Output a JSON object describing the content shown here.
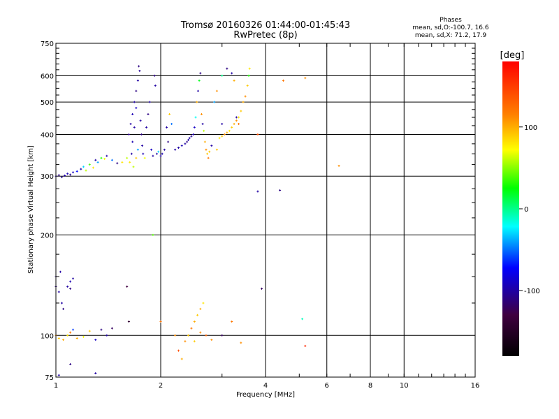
{
  "chart_data": {
    "type": "scatter",
    "title": "Tromsø 20160326 01:44:00-01:45:43",
    "subtitle": "RwPretec (8p)",
    "phases_title": "Phases",
    "phases_line1": "mean, sd,O:-100.7, 16.6",
    "phases_line2": "mean, sd,X:  71.2, 17.9",
    "xlabel": "Frequency [MHz]",
    "ylabel": "Stationary phase Virtual Height [km]",
    "x_scale": "log",
    "y_scale": "log",
    "xlim": [
      1,
      16
    ],
    "ylim": [
      75,
      750
    ],
    "x_ticks": [
      1,
      2,
      4,
      6,
      8,
      10,
      16
    ],
    "x_tick_labels": [
      "1",
      "2",
      "4",
      "6",
      "8",
      "10",
      "16"
    ],
    "y_ticks": [
      75,
      100,
      200,
      300,
      400,
      500,
      600,
      750
    ],
    "y_tick_labels": [
      "75",
      "100",
      "200",
      "300",
      "400",
      "500",
      "600",
      "750"
    ],
    "y_minor_ticks": [
      125,
      150,
      175,
      225,
      250,
      275,
      325,
      350,
      375,
      425,
      450,
      475,
      525,
      550,
      575,
      625,
      650,
      675,
      700,
      725
    ],
    "grid": true,
    "colorbar": {
      "label": "[deg]",
      "range": [
        -180,
        180
      ],
      "ticks": [
        100,
        0,
        -100
      ],
      "tick_labels": [
        "100",
        "0",
        "-100"
      ]
    },
    "points": [
      [
        1.0,
        300,
        -100
      ],
      [
        1.02,
        302,
        -110
      ],
      [
        1.04,
        298,
        -105
      ],
      [
        1.06,
        301,
        -100
      ],
      [
        1.08,
        305,
        -95
      ],
      [
        1.1,
        303,
        -105
      ],
      [
        1.12,
        308,
        -90
      ],
      [
        1.15,
        310,
        -70
      ],
      [
        1.18,
        315,
        -100
      ],
      [
        1.2,
        320,
        -30
      ],
      [
        1.22,
        312,
        60
      ],
      [
        1.25,
        325,
        40
      ],
      [
        1.28,
        318,
        80
      ],
      [
        1.3,
        335,
        -100
      ],
      [
        1.32,
        330,
        -40
      ],
      [
        1.35,
        340,
        30
      ],
      [
        1.38,
        338,
        70
      ],
      [
        1.4,
        345,
        -100
      ],
      [
        1.45,
        335,
        -50
      ],
      [
        1.5,
        328,
        -110
      ],
      [
        1.55,
        330,
        80
      ],
      [
        1.6,
        340,
        60
      ],
      [
        1.62,
        400,
        -110
      ],
      [
        1.64,
        430,
        -100
      ],
      [
        1.66,
        460,
        -95
      ],
      [
        1.68,
        500,
        -100
      ],
      [
        1.7,
        540,
        -110
      ],
      [
        1.72,
        580,
        -100
      ],
      [
        1.74,
        620,
        -105
      ],
      [
        1.73,
        640,
        -110
      ],
      [
        1.7,
        480,
        -90
      ],
      [
        1.68,
        420,
        -100
      ],
      [
        1.66,
        380,
        -95
      ],
      [
        1.65,
        350,
        -100
      ],
      [
        1.63,
        330,
        80
      ],
      [
        1.67,
        320,
        60
      ],
      [
        1.7,
        340,
        90
      ],
      [
        1.72,
        360,
        -40
      ],
      [
        1.75,
        440,
        -100
      ],
      [
        1.76,
        400,
        -110
      ],
      [
        1.77,
        370,
        -100
      ],
      [
        1.78,
        350,
        -95
      ],
      [
        1.8,
        340,
        70
      ],
      [
        1.82,
        420,
        -100
      ],
      [
        1.84,
        460,
        -110
      ],
      [
        1.86,
        500,
        -100
      ],
      [
        1.88,
        360,
        -90
      ],
      [
        1.9,
        345,
        -100
      ],
      [
        1.92,
        600,
        -110
      ],
      [
        1.93,
        560,
        -100
      ],
      [
        1.95,
        350,
        -100
      ],
      [
        1.97,
        355,
        -30
      ],
      [
        2.0,
        345,
        -100
      ],
      [
        2.02,
        350,
        -95
      ],
      [
        2.05,
        360,
        -100
      ],
      [
        2.08,
        420,
        -100
      ],
      [
        2.1,
        380,
        -110
      ],
      [
        2.12,
        460,
        90
      ],
      [
        2.15,
        430,
        -50
      ],
      [
        2.2,
        360,
        -100
      ],
      [
        2.25,
        365,
        -100
      ],
      [
        2.3,
        370,
        -95
      ],
      [
        2.35,
        375,
        -100
      ],
      [
        2.38,
        380,
        -110
      ],
      [
        2.4,
        385,
        -100
      ],
      [
        2.42,
        390,
        -100
      ],
      [
        2.45,
        395,
        -105
      ],
      [
        2.48,
        400,
        -100
      ],
      [
        2.5,
        420,
        -90
      ],
      [
        2.52,
        450,
        -20
      ],
      [
        2.54,
        500,
        100
      ],
      [
        2.56,
        540,
        -100
      ],
      [
        2.58,
        580,
        20
      ],
      [
        2.6,
        610,
        -110
      ],
      [
        2.62,
        460,
        110
      ],
      [
        2.64,
        430,
        -100
      ],
      [
        2.66,
        410,
        60
      ],
      [
        2.68,
        380,
        100
      ],
      [
        2.7,
        360,
        110
      ],
      [
        2.72,
        350,
        90
      ],
      [
        2.74,
        340,
        120
      ],
      [
        2.76,
        355,
        90
      ],
      [
        2.8,
        370,
        -100
      ],
      [
        2.85,
        500,
        -40
      ],
      [
        2.9,
        540,
        110
      ],
      [
        2.95,
        390,
        80
      ],
      [
        3.0,
        395,
        90
      ],
      [
        3.05,
        400,
        110
      ],
      [
        3.1,
        405,
        100
      ],
      [
        3.15,
        410,
        80
      ],
      [
        3.2,
        420,
        90
      ],
      [
        3.25,
        430,
        100
      ],
      [
        3.3,
        440,
        110
      ],
      [
        3.35,
        450,
        80
      ],
      [
        3.4,
        470,
        90
      ],
      [
        3.45,
        500,
        100
      ],
      [
        3.5,
        520,
        110
      ],
      [
        3.55,
        560,
        90
      ],
      [
        3.58,
        600,
        30
      ],
      [
        3.6,
        630,
        80
      ],
      [
        3.1,
        630,
        -110
      ],
      [
        3.2,
        610,
        -100
      ],
      [
        3.25,
        580,
        100
      ],
      [
        3.3,
        450,
        -100
      ],
      [
        3.35,
        430,
        120
      ],
      [
        3.0,
        600,
        0
      ],
      [
        3.0,
        430,
        -100
      ],
      [
        2.9,
        360,
        90
      ],
      [
        3.8,
        400,
        140
      ],
      [
        3.8,
        270,
        -100
      ],
      [
        4.4,
        272,
        -110
      ],
      [
        4.5,
        580,
        120
      ],
      [
        5.2,
        590,
        110
      ],
      [
        6.5,
        322,
        110
      ],
      [
        1.0,
        140,
        -110
      ],
      [
        1.02,
        135,
        -100
      ],
      [
        1.04,
        125,
        -100
      ],
      [
        1.0,
        150,
        -110
      ],
      [
        1.03,
        155,
        -100
      ],
      [
        1.05,
        120,
        -110
      ],
      [
        1.08,
        140,
        -100
      ],
      [
        1.1,
        145,
        -95
      ],
      [
        1.12,
        148,
        -100
      ],
      [
        1.1,
        138,
        -110
      ],
      [
        1.0,
        100,
        110
      ],
      [
        1.02,
        98,
        90
      ],
      [
        1.05,
        97,
        100
      ],
      [
        1.08,
        100,
        80
      ],
      [
        1.1,
        102,
        120
      ],
      [
        1.12,
        104,
        -60
      ],
      [
        1.15,
        98,
        100
      ],
      [
        1.2,
        99,
        70
      ],
      [
        1.25,
        103,
        90
      ],
      [
        1.3,
        97,
        -90
      ],
      [
        1.35,
        104,
        -110
      ],
      [
        1.4,
        100,
        -100
      ],
      [
        1.45,
        105,
        -120
      ],
      [
        1.6,
        140,
        -130
      ],
      [
        1.62,
        110,
        -140
      ],
      [
        1.9,
        200,
        40
      ],
      [
        2.0,
        110,
        120
      ],
      [
        2.2,
        100,
        110
      ],
      [
        2.25,
        90,
        140
      ],
      [
        2.3,
        85,
        100
      ],
      [
        2.35,
        96,
        110
      ],
      [
        2.4,
        100,
        90
      ],
      [
        2.45,
        105,
        120
      ],
      [
        2.5,
        110,
        100
      ],
      [
        2.55,
        115,
        90
      ],
      [
        2.6,
        120,
        100
      ],
      [
        2.65,
        125,
        80
      ],
      [
        2.7,
        100,
        130
      ],
      [
        2.8,
        97,
        110
      ],
      [
        3.0,
        100,
        -120
      ],
      [
        3.2,
        110,
        120
      ],
      [
        3.4,
        95,
        110
      ],
      [
        3.9,
        138,
        -120
      ],
      [
        5.1,
        112,
        -10
      ],
      [
        5.2,
        93,
        160
      ],
      [
        1.02,
        76,
        -100
      ],
      [
        1.1,
        82,
        -110
      ],
      [
        1.3,
        77,
        -100
      ],
      [
        2.6,
        102,
        110
      ],
      [
        2.5,
        96,
        90
      ]
    ]
  }
}
